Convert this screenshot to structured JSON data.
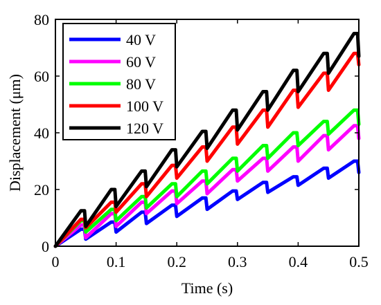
{
  "chart_data": {
    "type": "line",
    "xlabel": "Time  (s)",
    "ylabel": "Displacement (μm)",
    "xlim": [
      0,
      0.5
    ],
    "ylim": [
      0,
      80
    ],
    "xticks": [
      "0",
      "0.1",
      "0.2",
      "0.3",
      "0.4",
      "0.5"
    ],
    "yticks": [
      "0",
      "20",
      "40",
      "60",
      "80"
    ],
    "grid": false,
    "legend_position": "top-left",
    "series": [
      {
        "name": "40 V",
        "color": "#0000ff",
        "x": [
          0,
          0.042,
          0.048,
          0.05,
          0.092,
          0.098,
          0.1,
          0.142,
          0.148,
          0.15,
          0.192,
          0.198,
          0.2,
          0.242,
          0.248,
          0.25,
          0.292,
          0.298,
          0.3,
          0.342,
          0.348,
          0.35,
          0.392,
          0.398,
          0.4,
          0.442,
          0.448,
          0.45,
          0.492,
          0.498,
          0.5
        ],
        "y": [
          0,
          6,
          6,
          2.5,
          8.5,
          8.5,
          5,
          12,
          12,
          8,
          14.5,
          14.5,
          10.5,
          17,
          17,
          13,
          19.5,
          19.5,
          16.5,
          22.5,
          22.5,
          19,
          24.5,
          24.5,
          21.5,
          27.5,
          27.5,
          24,
          30,
          30,
          26
        ]
      },
      {
        "name": "60 V",
        "color": "#ff00ff",
        "x": [
          0,
          0.042,
          0.048,
          0.05,
          0.092,
          0.098,
          0.1,
          0.142,
          0.148,
          0.15,
          0.192,
          0.198,
          0.2,
          0.242,
          0.248,
          0.25,
          0.292,
          0.298,
          0.3,
          0.342,
          0.348,
          0.35,
          0.392,
          0.398,
          0.4,
          0.442,
          0.448,
          0.45,
          0.492,
          0.498,
          0.5
        ],
        "y": [
          0,
          7.5,
          7.5,
          3,
          11.5,
          11.5,
          7,
          15.5,
          15.5,
          11.5,
          19.5,
          19.5,
          15,
          23,
          23,
          18.5,
          27,
          27,
          23,
          31,
          31,
          26.5,
          35,
          35,
          30,
          39,
          39,
          34,
          42.5,
          42.5,
          38
        ]
      },
      {
        "name": "80 V",
        "color": "#00ff00",
        "x": [
          0,
          0.042,
          0.048,
          0.05,
          0.092,
          0.098,
          0.1,
          0.142,
          0.148,
          0.15,
          0.192,
          0.198,
          0.2,
          0.242,
          0.248,
          0.25,
          0.292,
          0.298,
          0.3,
          0.342,
          0.348,
          0.35,
          0.392,
          0.398,
          0.4,
          0.442,
          0.448,
          0.45,
          0.492,
          0.498,
          0.5
        ],
        "y": [
          0,
          9,
          9,
          5,
          13,
          13,
          9,
          17.5,
          17.5,
          13.5,
          22,
          22,
          17.5,
          26.5,
          26.5,
          22,
          31,
          31,
          26.5,
          35.5,
          35.5,
          31,
          40,
          40,
          35.5,
          44,
          44,
          39.5,
          48,
          48,
          43
        ]
      },
      {
        "name": "100 V",
        "color": "#ff0000",
        "x": [
          0,
          0.042,
          0.048,
          0.05,
          0.092,
          0.098,
          0.1,
          0.142,
          0.148,
          0.15,
          0.192,
          0.198,
          0.2,
          0.242,
          0.248,
          0.25,
          0.292,
          0.298,
          0.3,
          0.342,
          0.348,
          0.35,
          0.392,
          0.398,
          0.4,
          0.442,
          0.448,
          0.45,
          0.492,
          0.498,
          0.5
        ],
        "y": [
          0,
          9.5,
          9.5,
          6.5,
          15.5,
          15.5,
          12,
          22,
          22,
          17.5,
          28.5,
          28.5,
          24,
          35,
          35,
          30,
          42,
          42,
          36,
          48,
          48,
          42,
          55,
          55,
          49,
          61,
          61,
          55,
          68,
          68,
          64
        ]
      },
      {
        "name": "120 V",
        "color": "#000000",
        "x": [
          0,
          0.042,
          0.048,
          0.05,
          0.092,
          0.098,
          0.1,
          0.142,
          0.148,
          0.15,
          0.192,
          0.198,
          0.2,
          0.242,
          0.248,
          0.25,
          0.292,
          0.298,
          0.3,
          0.342,
          0.348,
          0.35,
          0.392,
          0.398,
          0.4,
          0.442,
          0.448,
          0.45,
          0.492,
          0.498,
          0.5
        ],
        "y": [
          0,
          12.5,
          12.5,
          7,
          20,
          20,
          14,
          26.5,
          26.5,
          21,
          34,
          34,
          28,
          40.5,
          40.5,
          34.5,
          48,
          48,
          41,
          54.5,
          54.5,
          48,
          62,
          62,
          54.5,
          68,
          68,
          61,
          75,
          75,
          67
        ]
      }
    ]
  }
}
